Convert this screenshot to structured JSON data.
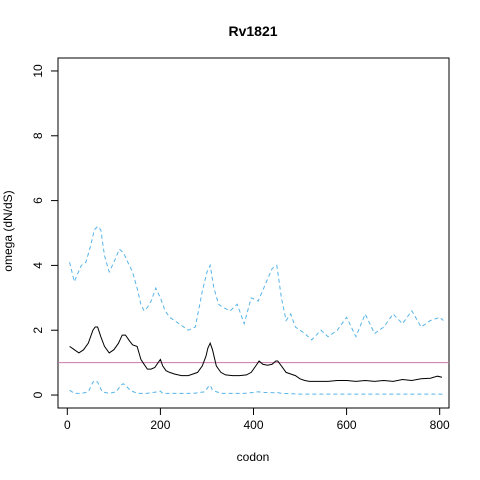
{
  "chart_data": {
    "type": "line",
    "title": "Rv1821",
    "xlabel": "codon",
    "ylabel": "omega (dN/dS)",
    "xlim": [
      -20,
      820
    ],
    "ylim": [
      -0.4,
      10.4
    ],
    "x_ticks": [
      0,
      200,
      400,
      600,
      800
    ],
    "y_ticks": [
      0,
      2,
      4,
      6,
      8,
      10
    ],
    "x_tick_labels": [
      "0",
      "200",
      "400",
      "600",
      "800"
    ],
    "y_tick_labels": [
      "0",
      "2",
      "4",
      "6",
      "8",
      "10"
    ],
    "grid": false,
    "reference_line": {
      "y": 1,
      "color": "#CC79A7"
    },
    "series": [
      {
        "role": "upper",
        "style": "dashed",
        "color": "#56B4E9",
        "x": [
          5,
          15,
          30,
          40,
          50,
          58,
          65,
          72,
          80,
          90,
          100,
          112,
          120,
          130,
          140,
          150,
          158,
          165,
          172,
          180,
          190,
          200,
          210,
          220,
          240,
          260,
          275,
          290,
          300,
          307,
          315,
          325,
          335,
          350,
          365,
          380,
          395,
          410,
          425,
          440,
          450,
          460,
          470,
          480,
          490,
          510,
          525,
          545,
          560,
          580,
          600,
          620,
          640,
          660,
          680,
          700,
          720,
          740,
          760,
          780,
          800,
          808
        ],
        "y": [
          4.1,
          3.5,
          4.0,
          4.1,
          4.6,
          5.1,
          5.2,
          5.1,
          4.3,
          3.8,
          4.1,
          4.5,
          4.4,
          4.1,
          3.8,
          3.3,
          2.8,
          2.6,
          2.7,
          2.9,
          3.3,
          3.0,
          2.6,
          2.4,
          2.2,
          2.0,
          2.1,
          3.2,
          3.8,
          4.0,
          3.3,
          2.8,
          2.7,
          2.6,
          2.8,
          2.2,
          3.0,
          2.9,
          3.4,
          3.9,
          4.0,
          3.0,
          2.3,
          2.5,
          2.1,
          1.9,
          1.7,
          2.0,
          1.8,
          2.0,
          2.4,
          1.8,
          2.5,
          1.9,
          2.1,
          2.5,
          2.2,
          2.6,
          2.1,
          2.3,
          2.4,
          2.3
        ]
      },
      {
        "role": "estimate",
        "style": "solid",
        "color": "#000000",
        "x": [
          5,
          15,
          25,
          35,
          45,
          55,
          60,
          65,
          72,
          80,
          90,
          100,
          110,
          118,
          125,
          132,
          140,
          150,
          158,
          165,
          172,
          180,
          188,
          195,
          200,
          205,
          212,
          220,
          230,
          245,
          260,
          270,
          280,
          290,
          298,
          302,
          307,
          312,
          320,
          330,
          340,
          355,
          370,
          385,
          395,
          405,
          412,
          420,
          430,
          440,
          448,
          452,
          460,
          470,
          480,
          490,
          500,
          510,
          520,
          540,
          560,
          580,
          600,
          620,
          640,
          660,
          680,
          700,
          720,
          740,
          760,
          780,
          795,
          805
        ],
        "y": [
          1.5,
          1.4,
          1.3,
          1.4,
          1.6,
          2.0,
          2.1,
          2.1,
          1.8,
          1.5,
          1.3,
          1.4,
          1.6,
          1.85,
          1.85,
          1.7,
          1.55,
          1.5,
          1.1,
          0.95,
          0.8,
          0.8,
          0.85,
          1.0,
          1.1,
          0.9,
          0.75,
          0.7,
          0.65,
          0.6,
          0.6,
          0.65,
          0.7,
          0.9,
          1.2,
          1.45,
          1.6,
          1.4,
          0.9,
          0.7,
          0.62,
          0.6,
          0.6,
          0.62,
          0.7,
          0.9,
          1.05,
          0.95,
          0.92,
          0.95,
          1.05,
          1.05,
          0.9,
          0.7,
          0.65,
          0.6,
          0.5,
          0.45,
          0.42,
          0.42,
          0.42,
          0.45,
          0.45,
          0.42,
          0.45,
          0.42,
          0.45,
          0.42,
          0.48,
          0.45,
          0.5,
          0.52,
          0.58,
          0.55
        ]
      },
      {
        "role": "lower",
        "style": "dashed",
        "color": "#56B4E9",
        "x": [
          5,
          15,
          30,
          45,
          55,
          60,
          65,
          75,
          90,
          105,
          115,
          120,
          125,
          135,
          150,
          170,
          195,
          200,
          205,
          230,
          270,
          295,
          303,
          307,
          312,
          330,
          380,
          400,
          410,
          420,
          445,
          450,
          460,
          500,
          600,
          700,
          800,
          808
        ],
        "y": [
          0.15,
          0.05,
          0.05,
          0.1,
          0.4,
          0.45,
          0.4,
          0.1,
          0.05,
          0.1,
          0.3,
          0.35,
          0.3,
          0.15,
          0.05,
          0.05,
          0.1,
          0.12,
          0.05,
          0.05,
          0.05,
          0.1,
          0.25,
          0.3,
          0.15,
          0.05,
          0.05,
          0.08,
          0.1,
          0.08,
          0.07,
          0.08,
          0.05,
          0.03,
          0.03,
          0.03,
          0.03,
          0.03
        ]
      }
    ]
  }
}
